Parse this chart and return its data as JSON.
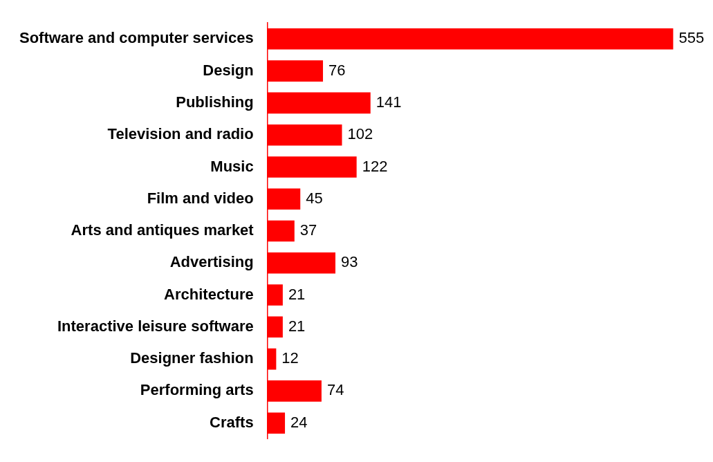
{
  "chart_data": {
    "type": "bar",
    "orientation": "horizontal",
    "categories": [
      "Software and computer services",
      "Design",
      "Publishing",
      "Television and radio",
      "Music",
      "Film and video",
      "Arts and antiques market",
      "Advertising",
      "Architecture",
      "Interactive leisure software",
      "Designer fashion",
      "Performing arts",
      "Crafts"
    ],
    "values": [
      555,
      76,
      141,
      102,
      122,
      45,
      37,
      93,
      21,
      21,
      12,
      74,
      24
    ],
    "color": "#ff0000",
    "data_labels": true,
    "tick_labels": "y",
    "grid": false,
    "legend": false
  }
}
